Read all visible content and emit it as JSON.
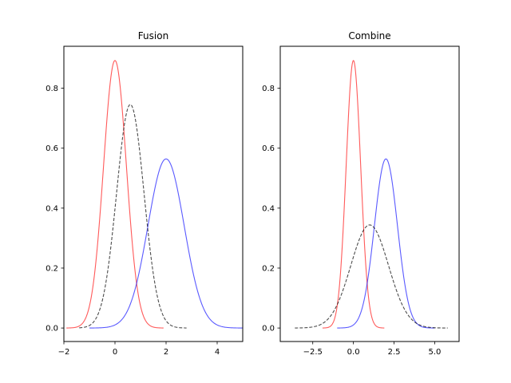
{
  "chart_data": [
    {
      "type": "line",
      "title": "Fusion",
      "xlabel": "",
      "ylabel": "",
      "xlim": [
        -2.0,
        5.0
      ],
      "ylim": [
        -0.045,
        0.94
      ],
      "xticks": [
        -2,
        0,
        2,
        4
      ],
      "xtick_labels": [
        "−2",
        "0",
        "2",
        "4"
      ],
      "yticks": [
        0.0,
        0.2,
        0.4,
        0.6,
        0.8
      ],
      "ytick_labels": [
        "0.0",
        "0.2",
        "0.4",
        "0.6",
        "0.8"
      ],
      "grid": false,
      "series": [
        {
          "kind": "gaussian",
          "mean": 0.0,
          "sigma": 0.447,
          "xrange": [
            -1.9,
            1.9
          ],
          "color": "#ff0000",
          "alpha": 0.65,
          "dashed": false
        },
        {
          "kind": "gaussian",
          "mean": 2.0,
          "sigma": 0.707,
          "xrange": [
            -1.0,
            5.0
          ],
          "color": "#0000ff",
          "alpha": 0.65,
          "dashed": false
        },
        {
          "kind": "gaussian",
          "mean": 0.6,
          "sigma": 0.535,
          "xrange": [
            -1.4,
            2.8
          ],
          "color": "#000000",
          "alpha": 0.7,
          "dashed": true
        }
      ]
    },
    {
      "type": "line",
      "title": "Combine",
      "xlabel": "",
      "ylabel": "",
      "xlim": [
        -4.5,
        6.5
      ],
      "ylim": [
        -0.045,
        0.94
      ],
      "xticks": [
        -2.5,
        0.0,
        2.5,
        5.0
      ],
      "xtick_labels": [
        "−2.5",
        "0.0",
        "2.5",
        "5.0"
      ],
      "yticks": [
        0.0,
        0.2,
        0.4,
        0.6,
        0.8
      ],
      "ytick_labels": [
        "0.0",
        "0.2",
        "0.4",
        "0.6",
        "0.8"
      ],
      "grid": false,
      "series": [
        {
          "kind": "gaussian",
          "mean": 0.0,
          "sigma": 0.447,
          "xrange": [
            -1.9,
            1.9
          ],
          "color": "#ff0000",
          "alpha": 0.65,
          "dashed": false
        },
        {
          "kind": "gaussian",
          "mean": 2.0,
          "sigma": 0.707,
          "xrange": [
            -1.0,
            5.0
          ],
          "color": "#0000ff",
          "alpha": 0.65,
          "dashed": false
        },
        {
          "kind": "gaussian",
          "mean": 1.0,
          "sigma": 1.16,
          "xrange": [
            -3.6,
            5.8
          ],
          "color": "#000000",
          "alpha": 0.7,
          "dashed": true
        }
      ]
    }
  ]
}
